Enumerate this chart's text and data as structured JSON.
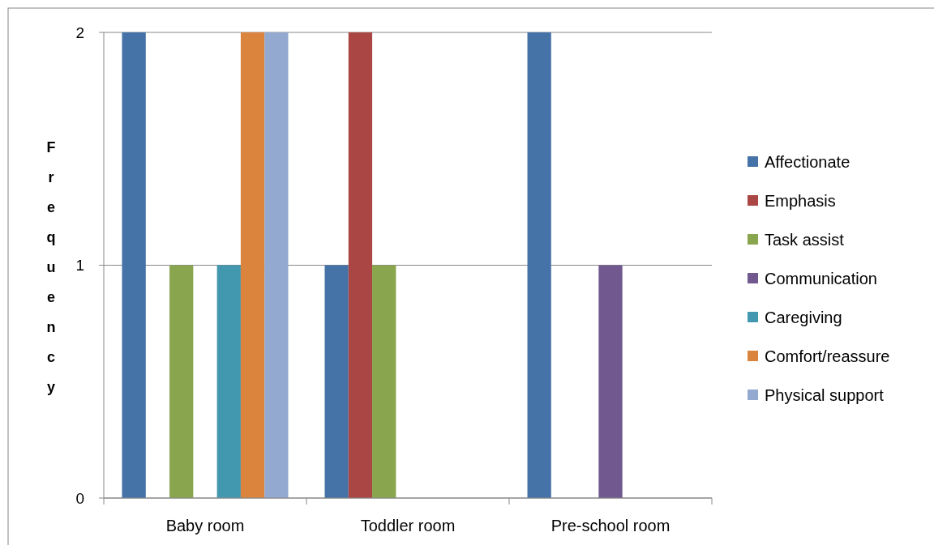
{
  "chart_data": {
    "type": "bar",
    "ylabel": "Frequency",
    "categories": [
      "Baby room",
      "Toddler room",
      "Pre-school room"
    ],
    "series": [
      {
        "name": "Affectionate",
        "color": "#4572a7",
        "values": [
          2,
          1,
          2
        ]
      },
      {
        "name": "Emphasis",
        "color": "#aa4643",
        "values": [
          0,
          2,
          0
        ]
      },
      {
        "name": "Task assist",
        "color": "#89a54e",
        "values": [
          1,
          1,
          0
        ]
      },
      {
        "name": "Communication",
        "color": "#71588f",
        "values": [
          0,
          0,
          1
        ]
      },
      {
        "name": "Caregiving",
        "color": "#4198af",
        "values": [
          1,
          0,
          0
        ]
      },
      {
        "name": "Comfort/reassure",
        "color": "#db843d",
        "values": [
          2,
          0,
          0
        ]
      },
      {
        "name": "Physical support",
        "color": "#93a9cf",
        "values": [
          2,
          0,
          0
        ]
      }
    ],
    "ylim": [
      0,
      2
    ],
    "yticks": [
      0,
      1,
      2
    ],
    "grid": "y",
    "legend": "right"
  }
}
